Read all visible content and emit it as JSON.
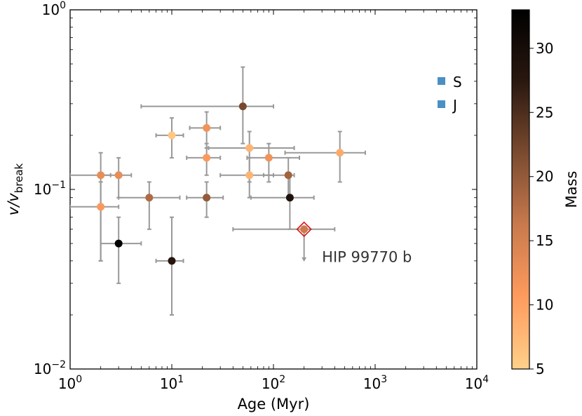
{
  "chart_data": {
    "type": "scatter",
    "title": "",
    "xlabel": "Age (Myr)",
    "ylabel_main": "v/v",
    "ylabel_sub": "break",
    "xscale": "log",
    "yscale": "log",
    "xlim": [
      1,
      10000
    ],
    "ylim": [
      0.01,
      1
    ],
    "xticks": [
      {
        "value": 1,
        "base": "10",
        "exp": "0"
      },
      {
        "value": 10,
        "base": "10",
        "exp": "1"
      },
      {
        "value": 100,
        "base": "10",
        "exp": "2"
      },
      {
        "value": 1000,
        "base": "10",
        "exp": "3"
      },
      {
        "value": 10000,
        "base": "10",
        "exp": "4"
      }
    ],
    "yticks": [
      {
        "value": 0.01,
        "base": "10",
        "exp": "−2"
      },
      {
        "value": 0.1,
        "base": "10",
        "exp": "−1"
      },
      {
        "value": 1,
        "base": "10",
        "exp": "0"
      }
    ],
    "legend": {
      "placement": "upper-right",
      "entries": [
        {
          "label": "S",
          "color": "#4a90c4"
        },
        {
          "label": "J",
          "color": "#4a90c4"
        }
      ]
    },
    "colorbar": {
      "label": "Mass",
      "min": 5,
      "max": 33,
      "ticks": [
        5,
        10,
        15,
        20,
        25,
        30
      ],
      "colormap": [
        "#ffd08a",
        "#ff9b5e",
        "#c97a4d",
        "#7b4b30",
        "#2a1810",
        "#000000"
      ]
    },
    "error_color": "#999999",
    "points": [
      {
        "x": 2,
        "y": 0.12,
        "mass": 13,
        "xerr": [
          1,
          2.5
        ],
        "yerr": [
          0.04,
          0.16
        ]
      },
      {
        "x": 3,
        "y": 0.12,
        "mass": 13,
        "xerr": [
          2,
          4
        ],
        "yerr": [
          0.09,
          0.15
        ]
      },
      {
        "x": 2,
        "y": 0.08,
        "mass": 11,
        "xerr": [
          1,
          3
        ],
        "yerr": [
          0.04,
          0.11
        ]
      },
      {
        "x": 3,
        "y": 0.05,
        "mass": 33,
        "xerr": [
          2,
          5
        ],
        "yerr": [
          0.03,
          0.07
        ]
      },
      {
        "x": 6,
        "y": 0.09,
        "mass": 18,
        "xerr": [
          3,
          12
        ],
        "yerr": [
          0.06,
          0.11
        ]
      },
      {
        "x": 10,
        "y": 0.2,
        "mass": 6,
        "xerr": [
          7,
          13
        ],
        "yerr": [
          0.15,
          0.25
        ]
      },
      {
        "x": 10,
        "y": 0.04,
        "mass": 28,
        "xerr": [
          7,
          13
        ],
        "yerr": [
          0.02,
          0.07
        ]
      },
      {
        "x": 22,
        "y": 0.22,
        "mass": 12,
        "xerr": [
          15,
          30
        ],
        "yerr": [
          0.17,
          0.27
        ]
      },
      {
        "x": 22,
        "y": 0.15,
        "mass": 11,
        "xerr": [
          14,
          30
        ],
        "yerr": [
          0.12,
          0.18
        ]
      },
      {
        "x": 22,
        "y": 0.09,
        "mass": 20,
        "xerr": [
          14,
          32
        ],
        "yerr": [
          0.07,
          0.11
        ]
      },
      {
        "x": 50,
        "y": 0.29,
        "mass": 22,
        "xerr": [
          5,
          100
        ],
        "yerr": [
          0.18,
          0.48
        ]
      },
      {
        "x": 58,
        "y": 0.17,
        "mass": 8,
        "xerr": [
          23,
          160
        ],
        "yerr": [
          0.11,
          0.21
        ]
      },
      {
        "x": 58,
        "y": 0.12,
        "mass": 8,
        "xerr": [
          30,
          100
        ],
        "yerr": [
          0.09,
          0.15
        ]
      },
      {
        "x": 90,
        "y": 0.15,
        "mass": 12,
        "xerr": [
          55,
          180
        ],
        "yerr": [
          0.11,
          0.18
        ]
      },
      {
        "x": 140,
        "y": 0.12,
        "mass": 19,
        "xerr": [
          80,
          160
        ],
        "yerr": [
          0.09,
          0.15
        ]
      },
      {
        "x": 145,
        "y": 0.09,
        "mass": 29,
        "xerr": [
          60,
          250
        ],
        "yerr": [
          0.06,
          0.12
        ]
      },
      {
        "x": 450,
        "y": 0.16,
        "mass": 9,
        "xerr": [
          130,
          800
        ],
        "yerr": [
          0.11,
          0.21
        ]
      },
      {
        "x": 200,
        "y": 0.06,
        "mass": 16,
        "xerr": [
          40,
          400
        ],
        "yerr": [
          0.04,
          0.06
        ],
        "upper_limit": true,
        "highlight": true
      }
    ],
    "highlight_color": "#dd1111",
    "annotations": [
      {
        "text": "HIP 99770 b",
        "x": 300,
        "y": 0.042
      }
    ]
  }
}
